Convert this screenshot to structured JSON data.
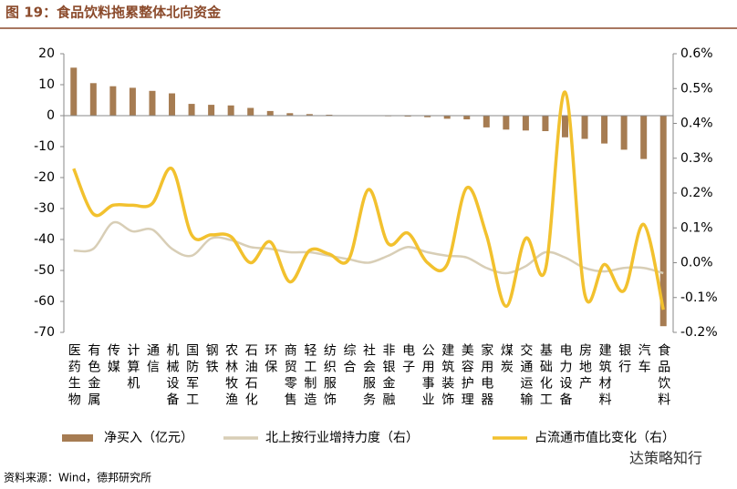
{
  "chart_data": {
    "type": "combo",
    "title": "图 19：食品饮料拖累整体北向资金",
    "source": "资料来源：Wind，德邦研究所",
    "watermark": "达策略知行",
    "categories": [
      "医药生物",
      "有色金属",
      "传媒",
      "计算机",
      "通信",
      "机械设备",
      "国防军工",
      "钢铁",
      "农林牧渔",
      "石油石化",
      "环保",
      "商贸零售",
      "轻工制造",
      "纺织服饰",
      "综合",
      "社会服务",
      "非银金融",
      "电子",
      "公用事业",
      "建筑装饰",
      "美容护理",
      "家用电器",
      "煤炭",
      "交通运输",
      "基础化工",
      "电力设备",
      "房地产",
      "建筑材料",
      "银行",
      "汽车",
      "食品饮料"
    ],
    "series": [
      {
        "name": "净买入（亿元）",
        "type": "bar",
        "axis": "y",
        "color": "#a67c52",
        "values": [
          15.5,
          10.5,
          9.5,
          9,
          8,
          7.2,
          3.8,
          3.5,
          3.3,
          2.5,
          1.5,
          0.8,
          0.5,
          0.3,
          0.1,
          0,
          -0.2,
          -0.3,
          -0.5,
          -1,
          -1.2,
          -3.8,
          -4.5,
          -4.8,
          -5,
          -7,
          -7.5,
          -9,
          -11,
          -14,
          -68
        ]
      },
      {
        "name": "北上按行业增持力度（右）",
        "type": "line",
        "axis": "y2",
        "color": "#d8ceb6",
        "values": [
          0.035,
          0.04,
          0.115,
          0.09,
          0.095,
          0.04,
          0.02,
          0.07,
          0.065,
          0.045,
          0.04,
          0.03,
          0.03,
          0.02,
          0.01,
          0,
          0.02,
          0.045,
          0.03,
          0.02,
          0.015,
          -0.015,
          -0.03,
          -0.01,
          0.03,
          0.015,
          -0.015,
          -0.025,
          -0.015,
          -0.015,
          -0.03
        ]
      },
      {
        "name": "占流通市值比变化（右）",
        "type": "line",
        "axis": "y2",
        "color": "#f2c12e",
        "values": [
          0.27,
          0.14,
          0.165,
          0.165,
          0.17,
          0.27,
          0.08,
          0.08,
          0.075,
          0,
          0.06,
          -0.055,
          0.035,
          0.025,
          0.01,
          0.21,
          0.055,
          0.085,
          0,
          -0.005,
          0.215,
          0.08,
          -0.125,
          0.07,
          -0.02,
          0.49,
          -0.09,
          -0.005,
          -0.08,
          0.11,
          -0.135
        ]
      }
    ],
    "ylim": [
      -70,
      20
    ],
    "yticks": [
      -70,
      -60,
      -50,
      -40,
      -30,
      -20,
      -10,
      0,
      10,
      20
    ],
    "y2lim": [
      -0.2,
      0.6
    ],
    "y2ticks": [
      {
        "value": -0.2,
        "label": "-0.2%"
      },
      {
        "value": -0.1,
        "label": "-0.1%"
      },
      {
        "value": 0,
        "label": "0.0%"
      },
      {
        "value": 0.1,
        "label": "0.1%"
      },
      {
        "value": 0.2,
        "label": "0.2%"
      },
      {
        "value": 0.3,
        "label": "0.3%"
      },
      {
        "value": 0.4,
        "label": "0.4%"
      },
      {
        "value": 0.5,
        "label": "0.5%"
      },
      {
        "value": 0.6,
        "label": "0.6%"
      }
    ]
  }
}
